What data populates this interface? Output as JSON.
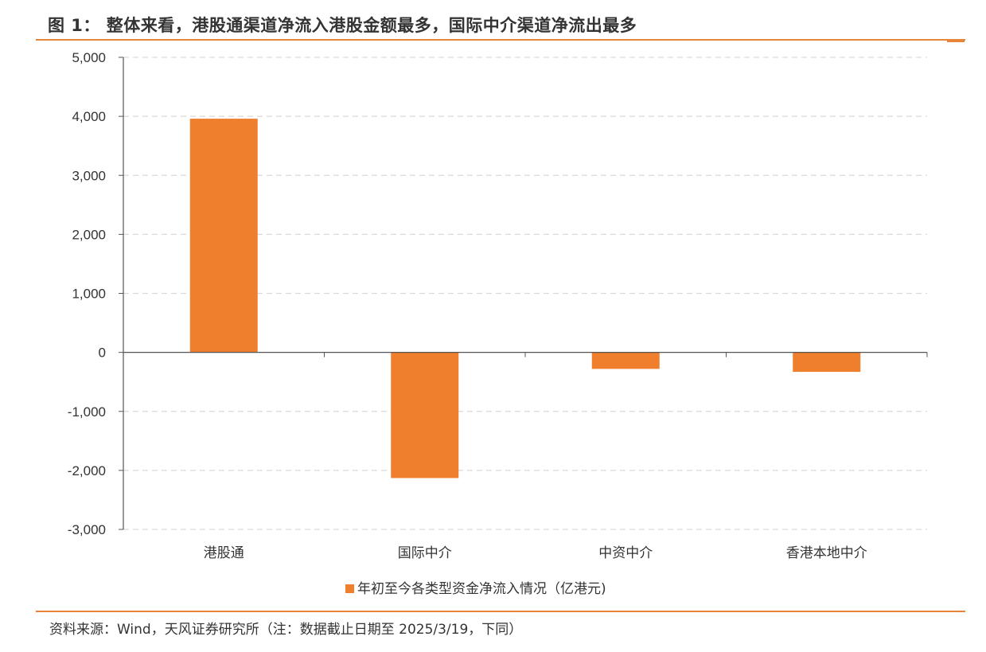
{
  "figure": {
    "title": "图 1：  整体来看，港股通渠道净流入港股金额最多，国际中介渠道净流出最多",
    "source": "资料来源：Wind，天风证券研究所（注：数据截止日期至 2025/3/19，下同）"
  },
  "colors": {
    "bar": "#f07f2d",
    "accent_rule": "#e8833a",
    "grid": "#d9d9d9",
    "axis": "#555555"
  },
  "chart_data": {
    "type": "bar",
    "categories": [
      "港股通",
      "国际中介",
      "中资中介",
      "香港本地中介"
    ],
    "series": [
      {
        "name": "年初至今各类型资金净流入情况（亿港元)",
        "values": [
          3960,
          -2130,
          -280,
          -330
        ]
      }
    ],
    "ylim": [
      -3000,
      5000
    ],
    "yticks": [
      5000,
      4000,
      3000,
      2000,
      1000,
      0,
      -1000,
      -2000,
      -3000
    ],
    "ytick_labels": [
      "5,000",
      "4,000",
      "3,000",
      "2,000",
      "1,000",
      "0",
      "-1,000",
      "-2,000",
      "-3,000"
    ],
    "grid": true,
    "legend_position": "bottom"
  }
}
